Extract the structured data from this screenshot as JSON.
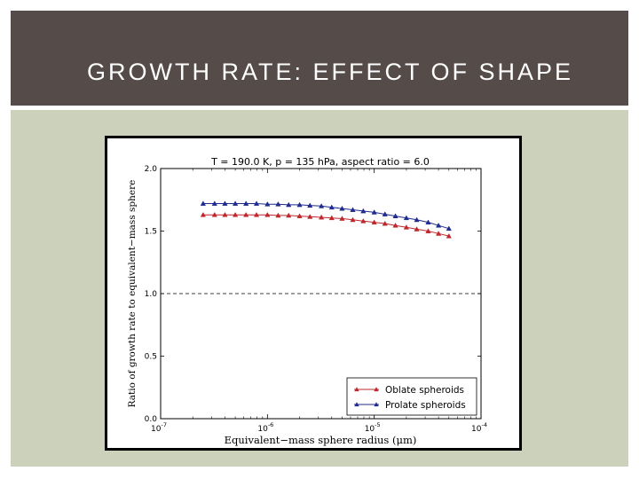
{
  "slide": {
    "title": "GROWTH RATE: EFFECT OF SHAPE"
  },
  "colors": {
    "title_bar": "#554b48",
    "panel": "#cbd1ba",
    "oblate": "#c0272d",
    "prolate": "#1f2b8f"
  },
  "chart_data": {
    "type": "line",
    "title": "T = 190.0 K, p = 135 hPa, aspect ratio = 6.0",
    "xlabel": "Equivalent−mass sphere radius (μm)",
    "ylabel": "Ratio of growth rate to equivalent−mass sphere",
    "xscale": "log",
    "xlim": [
      1e-07,
      0.0001
    ],
    "ylim": [
      0.0,
      2.0
    ],
    "x_ticks": [
      {
        "base": "10",
        "exp": "-7"
      },
      {
        "base": "10",
        "exp": "-6"
      },
      {
        "base": "10",
        "exp": "-5"
      },
      {
        "base": "10",
        "exp": "-4"
      }
    ],
    "y_ticks": [
      "0.0",
      "0.5",
      "1.0",
      "1.5",
      "2.0"
    ],
    "reference_line": {
      "y": 1.0,
      "style": "dashed"
    },
    "legend_position": "lower-right",
    "x": [
      2.5e-07,
      3.2e-07,
      4e-07,
      5e-07,
      6.3e-07,
      7.9e-07,
      1e-06,
      1.26e-06,
      1.58e-06,
      2e-06,
      2.5e-06,
      3.2e-06,
      4e-06,
      5e-06,
      6.3e-06,
      7.9e-06,
      1e-05,
      1.26e-05,
      1.58e-05,
      2e-05,
      2.5e-05,
      3.2e-05,
      4e-05,
      5e-05
    ],
    "series": [
      {
        "name": "Oblate spheroids",
        "color": "#c0272d",
        "values": [
          1.63,
          1.63,
          1.63,
          1.63,
          1.63,
          1.63,
          1.63,
          1.625,
          1.625,
          1.62,
          1.615,
          1.61,
          1.605,
          1.6,
          1.59,
          1.58,
          1.57,
          1.56,
          1.545,
          1.53,
          1.515,
          1.5,
          1.48,
          1.46
        ]
      },
      {
        "name": "Prolate spheroids",
        "color": "#1f2b8f",
        "values": [
          1.72,
          1.72,
          1.72,
          1.72,
          1.72,
          1.72,
          1.715,
          1.715,
          1.71,
          1.71,
          1.705,
          1.7,
          1.69,
          1.68,
          1.67,
          1.66,
          1.65,
          1.635,
          1.62,
          1.605,
          1.59,
          1.57,
          1.545,
          1.52
        ]
      }
    ]
  }
}
